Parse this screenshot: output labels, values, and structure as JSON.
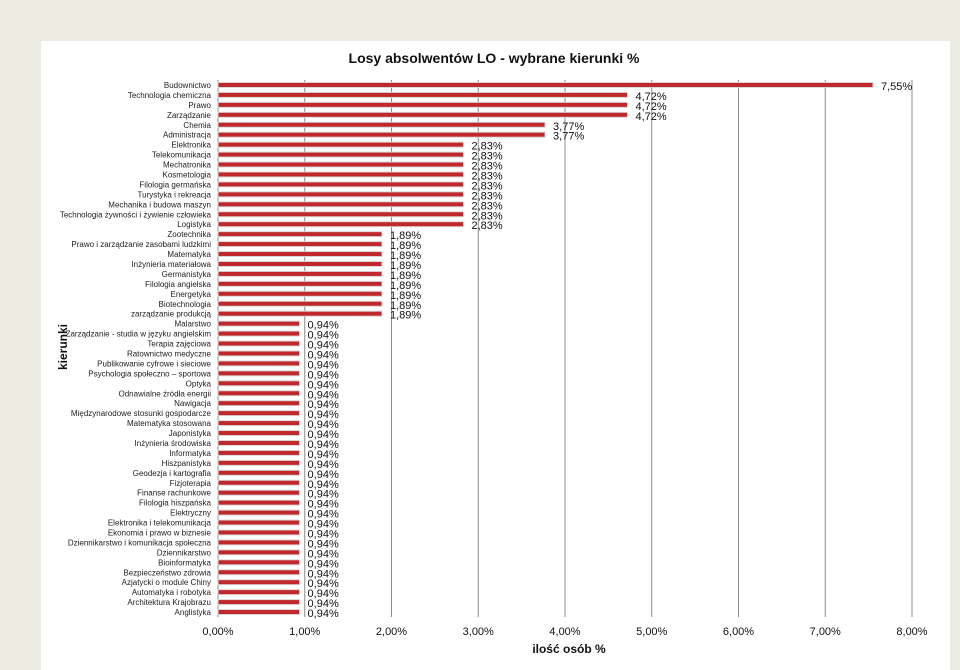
{
  "chart_data": {
    "type": "bar",
    "orientation": "horizontal",
    "title": "Losy absolwentów LO - wybrane kierunki %",
    "xlabel": "ilość osób %",
    "ylabel": "kierunki",
    "xlim": [
      0,
      8
    ],
    "x_ticks": [
      "0,00%",
      "1,00%",
      "2,00%",
      "3,00%",
      "4,00%",
      "5,00%",
      "6,00%",
      "7,00%",
      "8,00%"
    ],
    "grid": "vertical",
    "categories": [
      "Budownictwo",
      "Technologia chemiczna",
      "Prawo",
      "Zarządzanie",
      "Chemia",
      "Administracja",
      "Elektronika",
      "Telekomunikacja",
      "Mechatronika",
      "Kosmetologia",
      "Filologia germańska",
      "Turystyka i rekreacja",
      "Mechanika i budowa maszyn",
      "Technologia żywności i żywienie człowieka",
      "Logistyka",
      "Zootechnika",
      "Prawo i zarządzanie zasobami ludzkimi",
      "Matematyka",
      "Inżynieria materiałowa",
      "Germanistyka",
      "Filologia angielska",
      "Energetyka",
      "Biotechnologia",
      "zarządzanie produkcją",
      "Malarstwo",
      "Zarządzanie - studia w języku angielskim",
      "Terapia zajęciowa",
      "Ratownictwo medyczne",
      "Publikowanie cyfrowe i sieciowe",
      "Psychologia społeczno – sportowa",
      "Optyka",
      "Odnawialne źródła energii",
      "Nawigacja",
      "Międzynarodowe stosunki gospodarcze",
      "Matematyka stosowana",
      "Japonistyka",
      "Inżynieria środowiska",
      "Informatyka",
      "Hiszpanistyka",
      "Geodezja i kartografia",
      "Fizjoterapia",
      "Finanse rachunkowe",
      "Filologia hiszpańska",
      "Elektryczny",
      "Elektronika i telekomunikacja",
      "Ekonomia i prawo w biznesie",
      "Dziennikarstwo i komunikacja społeczna",
      "Dziennikarstwo",
      "Bioinformatyka",
      "Bezpieczeństwo zdrowia",
      "Azjatycki o module Chiny",
      "Automatyka i robotyka",
      "Architektura Krajobrazu",
      "Anglistyka"
    ],
    "values": [
      7.55,
      4.72,
      4.72,
      4.72,
      3.77,
      3.77,
      2.83,
      2.83,
      2.83,
      2.83,
      2.83,
      2.83,
      2.83,
      2.83,
      2.83,
      1.89,
      1.89,
      1.89,
      1.89,
      1.89,
      1.89,
      1.89,
      1.89,
      1.89,
      0.94,
      0.94,
      0.94,
      0.94,
      0.94,
      0.94,
      0.94,
      0.94,
      0.94,
      0.94,
      0.94,
      0.94,
      0.94,
      0.94,
      0.94,
      0.94,
      0.94,
      0.94,
      0.94,
      0.94,
      0.94,
      0.94,
      0.94,
      0.94,
      0.94,
      0.94,
      0.94,
      0.94,
      0.94,
      0.94
    ],
    "value_labels": [
      "7,55%",
      "4,72%",
      "4,72%",
      "4,72%",
      "3,77%",
      "3,77%",
      "2,83%",
      "2,83%",
      "2,83%",
      "2,83%",
      "2,83%",
      "2,83%",
      "2,83%",
      "2,83%",
      "2,83%",
      "1,89%",
      "1,89%",
      "1,89%",
      "1,89%",
      "1,89%",
      "1,89%",
      "1,89%",
      "1,89%",
      "1,89%",
      "0,94%",
      "0,94%",
      "0,94%",
      "0,94%",
      "0,94%",
      "0,94%",
      "0,94%",
      "0,94%",
      "0,94%",
      "0,94%",
      "0,94%",
      "0,94%",
      "0,94%",
      "0,94%",
      "0,94%",
      "0,94%",
      "0,94%",
      "0,94%",
      "0,94%",
      "0,94%",
      "0,94%",
      "0,94%",
      "0,94%",
      "0,94%",
      "0,94%",
      "0,94%",
      "0,94%",
      "0,94%",
      "0,94%",
      "0,94%"
    ],
    "colors": {
      "bar": "#c0282c",
      "bar_edge": "#d7d7d7",
      "grid": "#8c8c8c",
      "background": "#ffffff",
      "page": "#ecebe1"
    }
  }
}
